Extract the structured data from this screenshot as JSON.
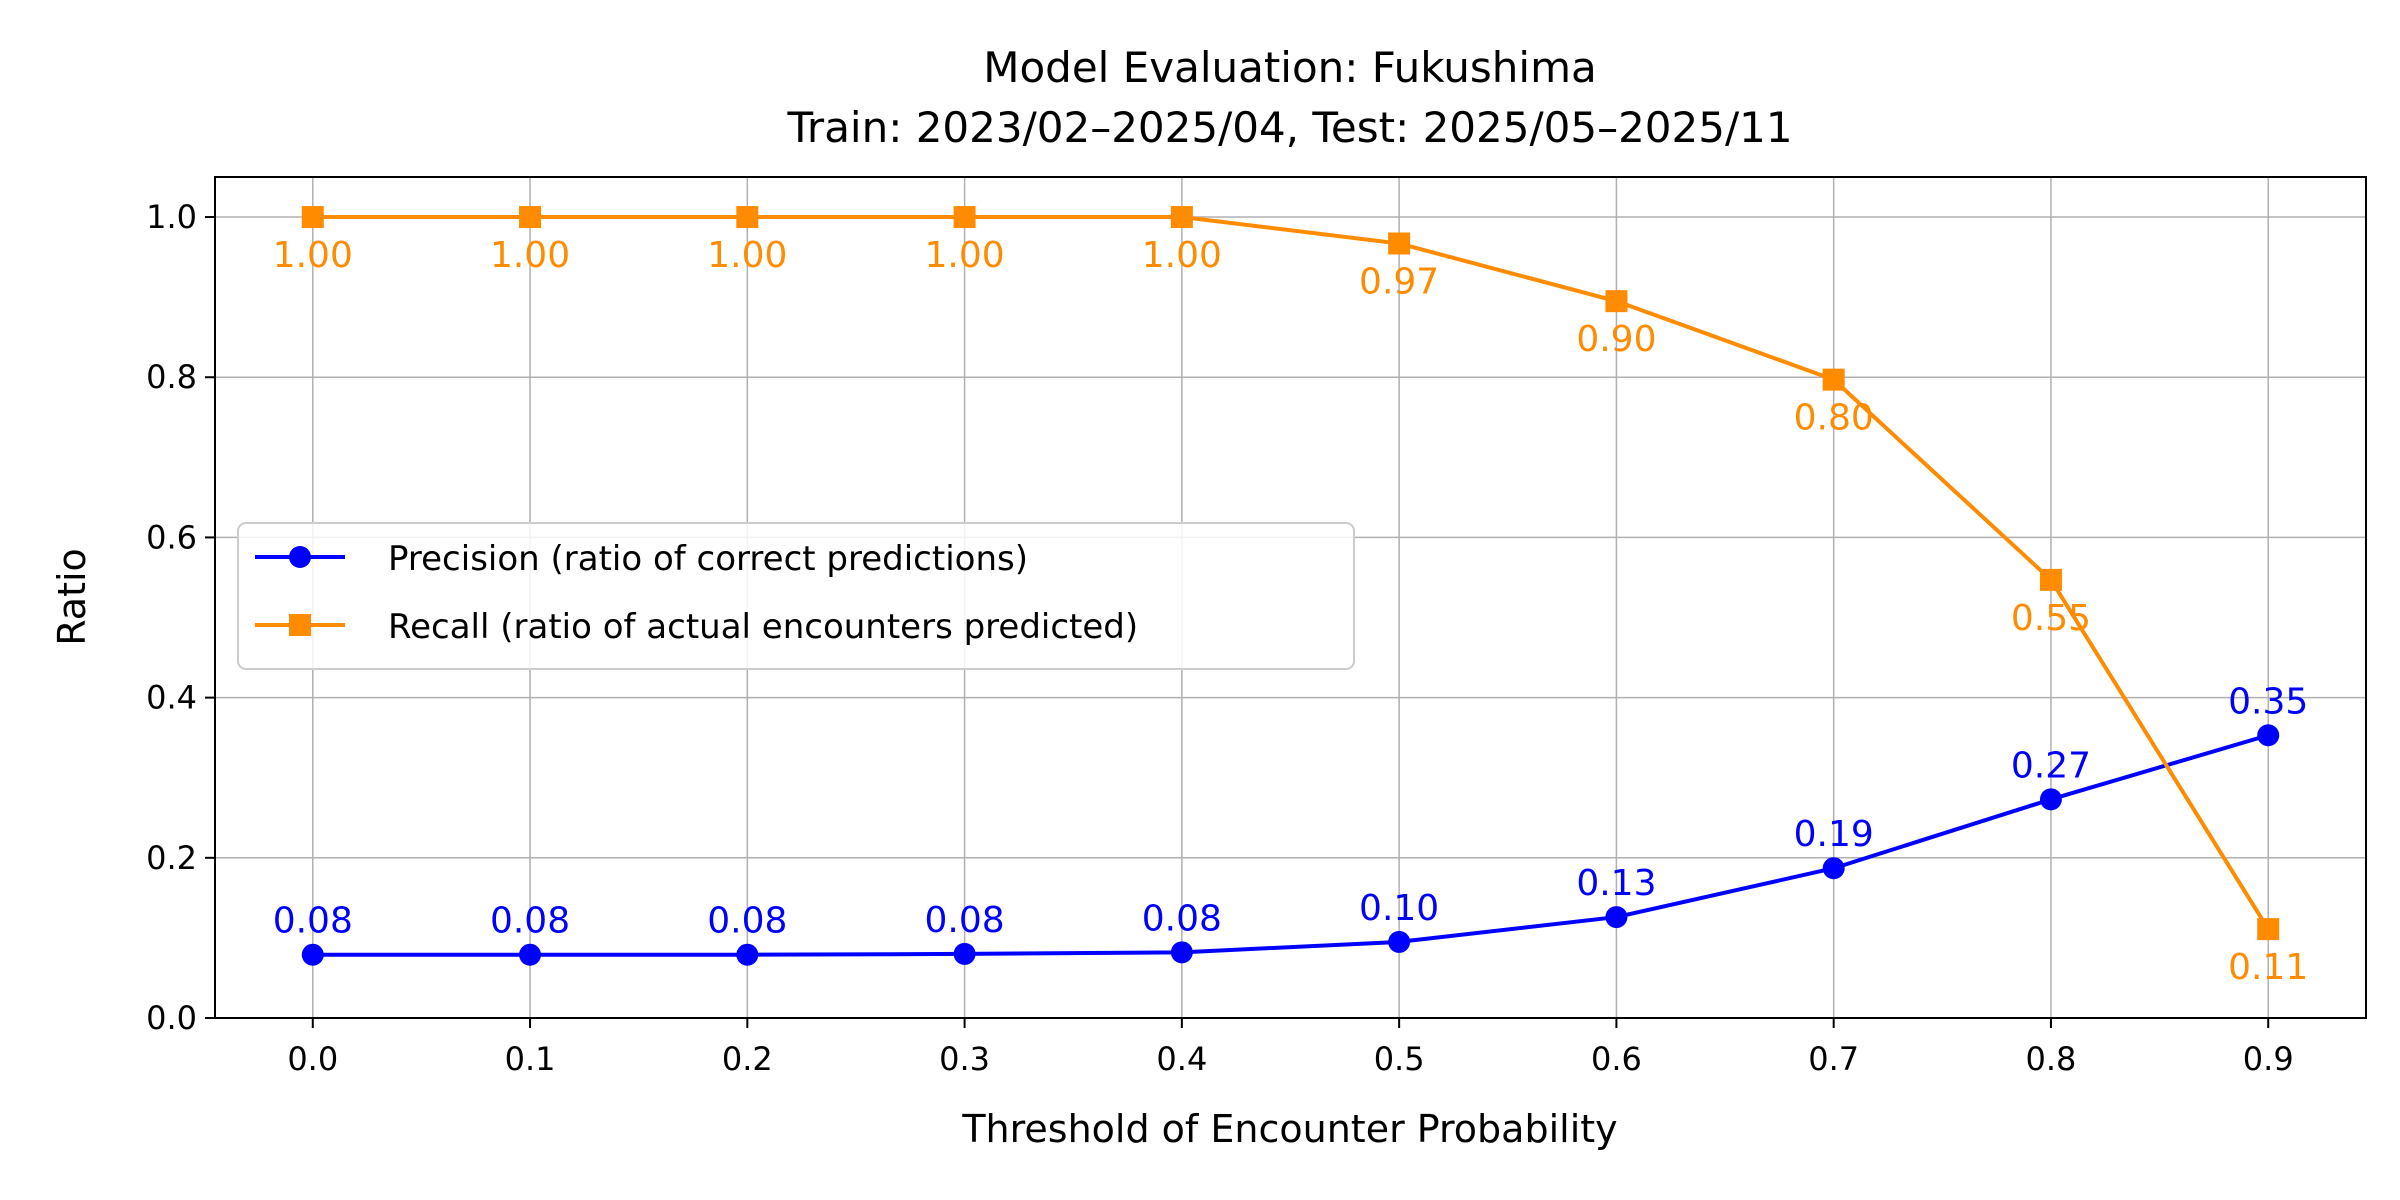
{
  "chart_data": {
    "type": "line",
    "title": "Model Evaluation: Fukushima",
    "subtitle": "Train: 2023/02–2025/04, Test: 2025/05–2025/11",
    "xlabel": "Threshold of Encounter Probability",
    "ylabel": "Ratio",
    "xlim": [
      -0.045,
      0.945
    ],
    "ylim": [
      0,
      1.05
    ],
    "grid": true,
    "legend_position": "center-left",
    "x": [
      0.0,
      0.1,
      0.2,
      0.3,
      0.4,
      0.5,
      0.6,
      0.7,
      0.8,
      0.9
    ],
    "xticks": [
      "0.0",
      "0.1",
      "0.2",
      "0.3",
      "0.4",
      "0.5",
      "0.6",
      "0.7",
      "0.8",
      "0.9"
    ],
    "yticks": [
      "0.0",
      "0.2",
      "0.4",
      "0.6",
      "0.8",
      "1.0"
    ],
    "series": [
      {
        "name": "Precision (ratio of correct predictions)",
        "color": "#0000ff",
        "marker": "circle",
        "values": [
          0.079,
          0.079,
          0.079,
          0.08,
          0.082,
          0.095,
          0.126,
          0.187,
          0.273,
          0.353
        ],
        "labels": [
          "0.08",
          "0.08",
          "0.08",
          "0.08",
          "0.08",
          "0.10",
          "0.13",
          "0.19",
          "0.27",
          "0.35"
        ],
        "label_position": "above"
      },
      {
        "name": "Recall (ratio of actual encounters predicted)",
        "color": "#ff8c00",
        "marker": "square",
        "values": [
          1.0,
          1.0,
          1.0,
          1.0,
          1.0,
          0.967,
          0.895,
          0.797,
          0.547,
          0.111
        ],
        "labels": [
          "1.00",
          "1.00",
          "1.00",
          "1.00",
          "1.00",
          "0.97",
          "0.90",
          "0.80",
          "0.55",
          "0.11"
        ],
        "label_position": "below"
      }
    ]
  }
}
